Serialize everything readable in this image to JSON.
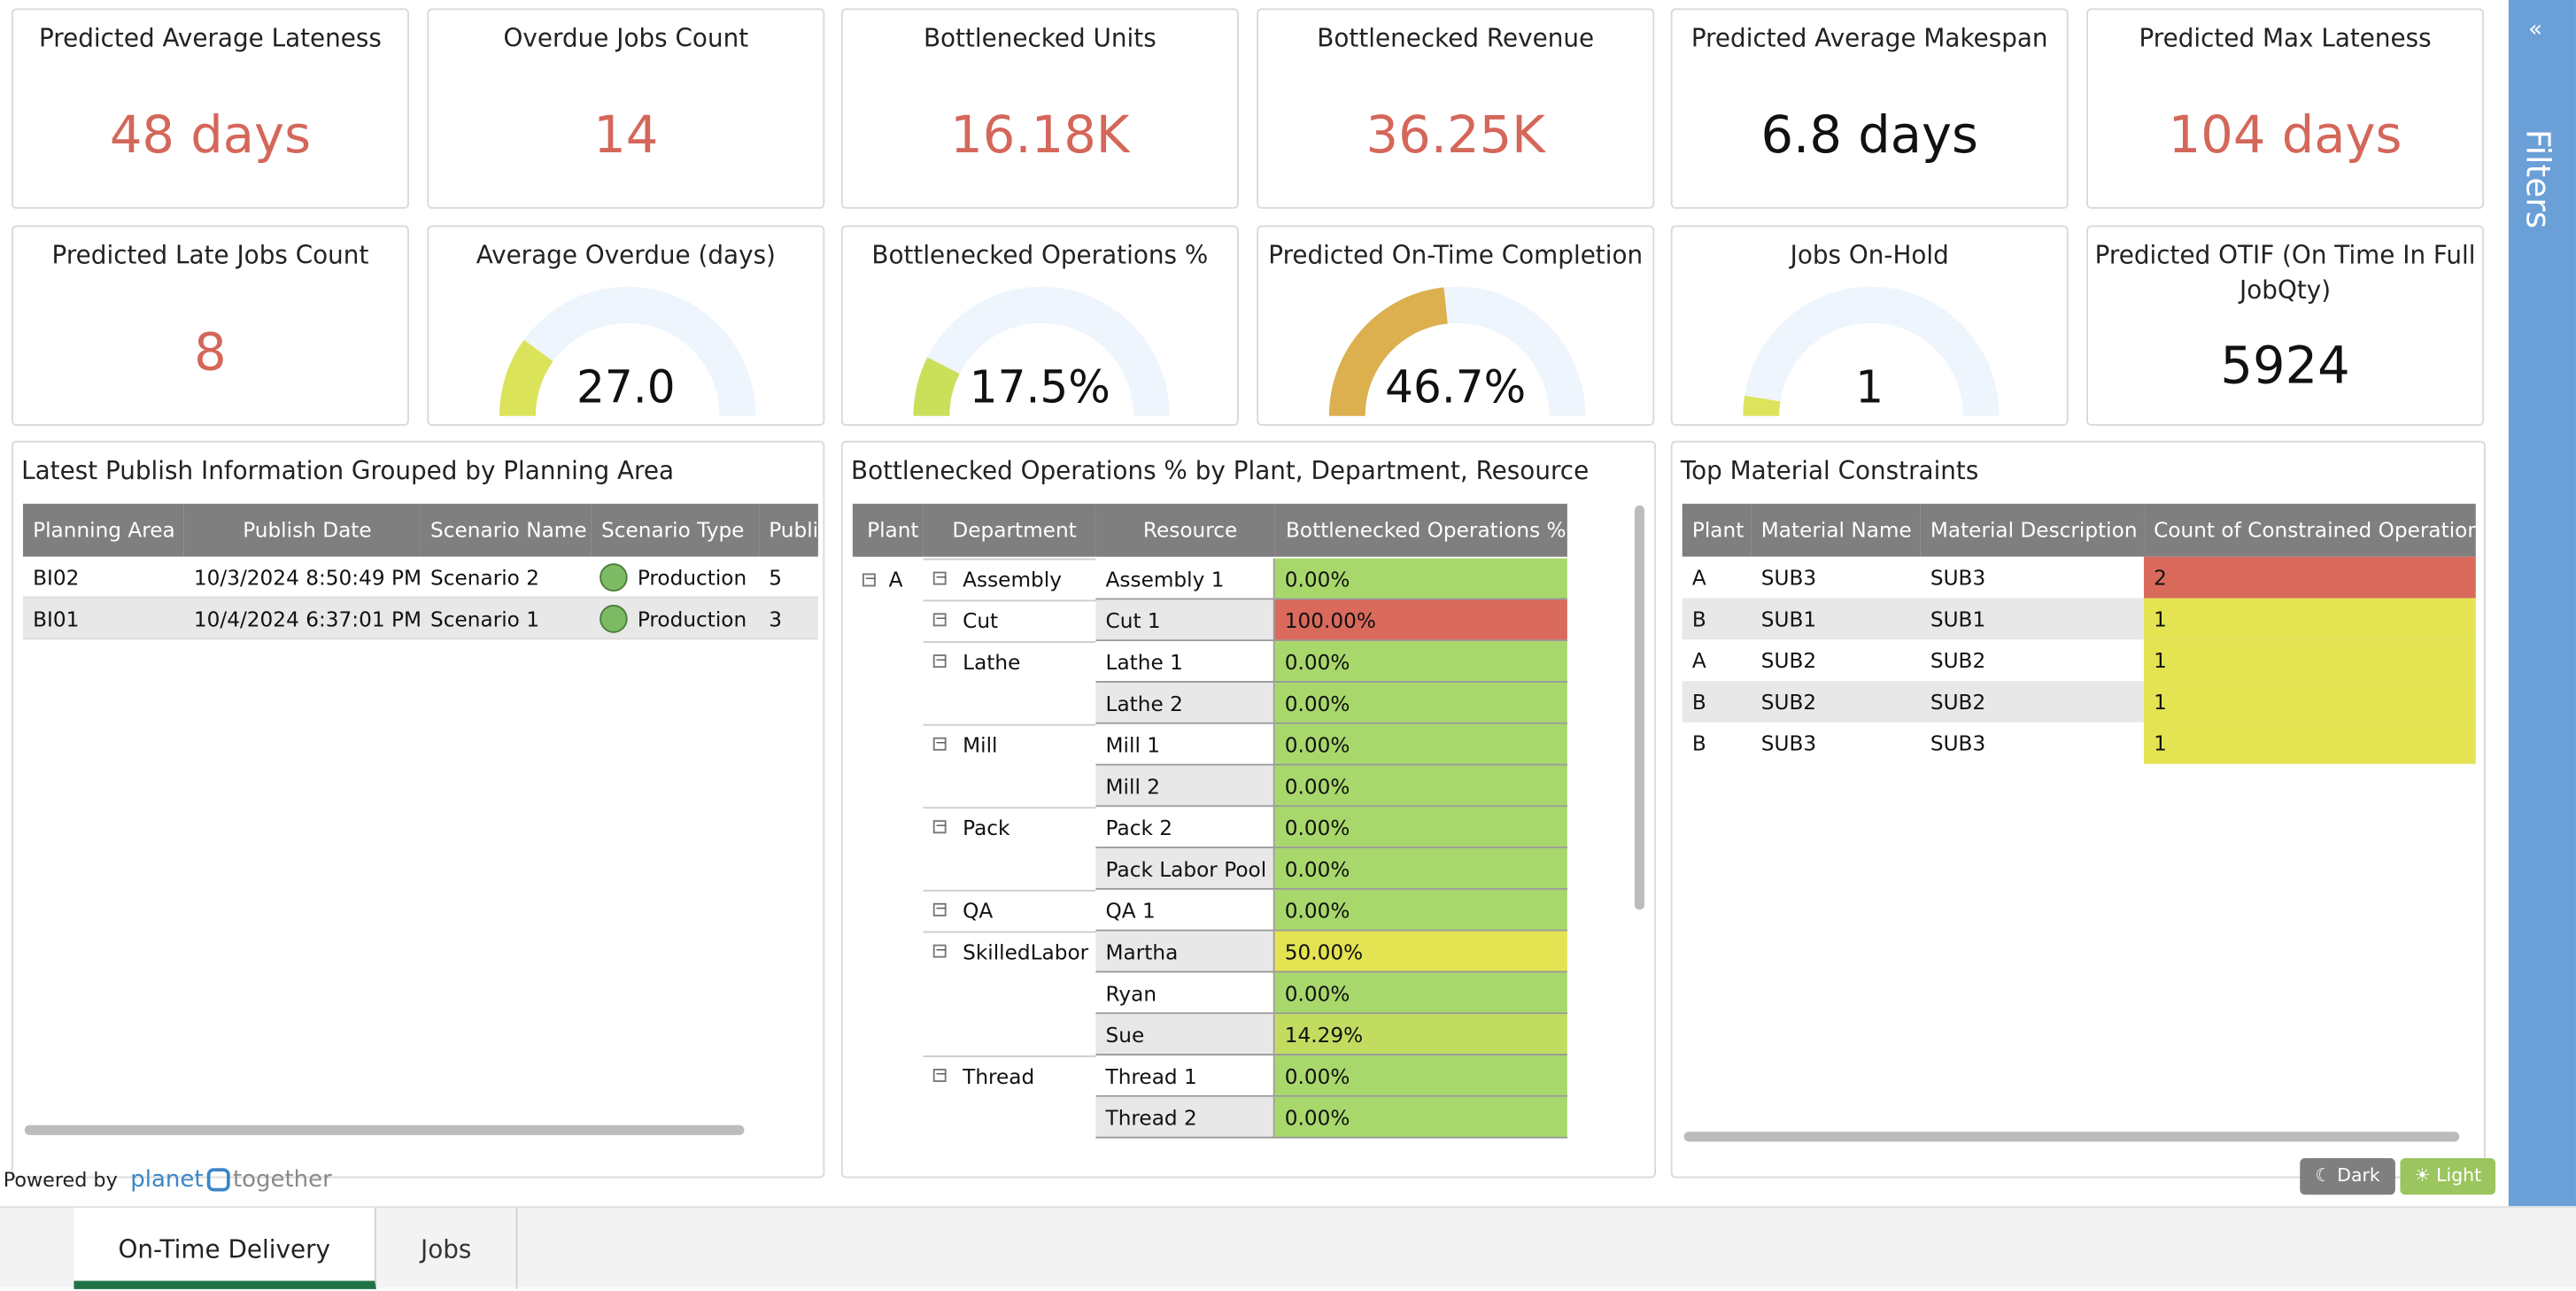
{
  "kpis": [
    {
      "title": "Predicted Average Lateness",
      "value": "48 days",
      "color": "#d4675a"
    },
    {
      "title": "Overdue Jobs Count",
      "value": "14",
      "color": "#d4675a"
    },
    {
      "title": "Bottlenecked Units",
      "value": "16.18K",
      "color": "#d4675a"
    },
    {
      "title": "Bottlenecked Revenue",
      "value": "36.25K",
      "color": "#d4675a"
    },
    {
      "title": "Predicted Average Makespan",
      "value": "6.8 days",
      "color": "#111111"
    },
    {
      "title": "Predicted Max Lateness",
      "value": "104 days",
      "color": "#d4675a"
    },
    {
      "title": "Predicted Late Jobs Count",
      "value": "8",
      "color": "#d4675a"
    },
    {
      "title": "Average Overdue (days)",
      "value": "27.0",
      "color": "#111111"
    },
    {
      "title": "Bottlenecked Operations %",
      "value": "17.5%",
      "color": "#111111"
    },
    {
      "title": "Predicted On-Time Completion",
      "value": "46.7%",
      "color": "#111111"
    },
    {
      "title": "Jobs On-Hold",
      "value": "1",
      "color": "#111111"
    },
    {
      "title": "Predicted OTIF (On Time In Full JobQty)",
      "value": "5924",
      "color": "#111111"
    }
  ],
  "publish": {
    "title": "Latest Publish Information Grouped by Planning Area",
    "headers": [
      "Planning Area",
      "Publish Date",
      "Scenario Name",
      "Scenario Type",
      "Publi"
    ],
    "rows": [
      [
        "BI02",
        "10/3/2024 8:50:49 PM",
        "Scenario 2",
        "Production",
        "5"
      ],
      [
        "BI01",
        "10/4/2024 6:37:01 PM",
        "Scenario 1",
        "Production",
        "3"
      ]
    ]
  },
  "bottleneck": {
    "title": "Bottlenecked Operations % by Plant, Department, Resource",
    "headers": [
      "Plant",
      "Department",
      "Resource",
      "Bottlenecked Operations %"
    ],
    "plants": [
      {
        "name": "A",
        "departments": [
          {
            "name": "Assembly",
            "resources": [
              {
                "name": "Assembly 1",
                "value": "0.00%",
                "color": "#a8d86c"
              }
            ]
          },
          {
            "name": "Cut",
            "resources": [
              {
                "name": "Cut 1",
                "value": "100.00%",
                "color": "#d96a5c"
              }
            ]
          },
          {
            "name": "Lathe",
            "resources": [
              {
                "name": "Lathe 1",
                "value": "0.00%",
                "color": "#a8d86c"
              },
              {
                "name": "Lathe 2",
                "value": "0.00%",
                "color": "#a8d86c"
              }
            ]
          },
          {
            "name": "Mill",
            "resources": [
              {
                "name": "Mill 1",
                "value": "0.00%",
                "color": "#a8d86c"
              },
              {
                "name": "Mill 2",
                "value": "0.00%",
                "color": "#a8d86c"
              }
            ]
          },
          {
            "name": "Pack",
            "resources": [
              {
                "name": "Pack 2",
                "value": "0.00%",
                "color": "#a8d86c"
              },
              {
                "name": "Pack Labor Pool",
                "value": "0.00%",
                "color": "#a8d86c"
              }
            ]
          },
          {
            "name": "QA",
            "resources": [
              {
                "name": "QA 1",
                "value": "0.00%",
                "color": "#a8d86c"
              }
            ]
          },
          {
            "name": "SkilledLabor",
            "resources": [
              {
                "name": "Martha",
                "value": "50.00%",
                "color": "#e4e352"
              },
              {
                "name": "Ryan",
                "value": "0.00%",
                "color": "#a8d86c"
              },
              {
                "name": "Sue",
                "value": "14.29%",
                "color": "#c2dc60"
              }
            ]
          },
          {
            "name": "Thread",
            "resources": [
              {
                "name": "Thread 1",
                "value": "0.00%",
                "color": "#a8d86c"
              },
              {
                "name": "Thread 2",
                "value": "0.00%",
                "color": "#a8d86c"
              }
            ]
          }
        ]
      }
    ]
  },
  "materials": {
    "title": "Top Material Constraints",
    "headers": [
      "Plant",
      "Material Name",
      "Material Description",
      "Count of Constrained Operation"
    ],
    "rows": [
      [
        "A",
        "SUB3",
        "SUB3",
        "2"
      ],
      [
        "B",
        "SUB1",
        "SUB1",
        "1"
      ],
      [
        "A",
        "SUB2",
        "SUB2",
        "1"
      ],
      [
        "B",
        "SUB2",
        "SUB2",
        "1"
      ],
      [
        "B",
        "SUB3",
        "SUB3",
        "1"
      ]
    ],
    "colors": [
      "#d96a5c",
      "#e4e352",
      "#e4e352",
      "#e4e352",
      "#e4e352"
    ]
  },
  "footer": {
    "powered_by": "Powered by",
    "brand_1": "planet",
    "brand_2": "together",
    "dark": "Dark",
    "light": "Light",
    "filters": "Filters"
  },
  "tabs": [
    "On-Time Delivery",
    "Jobs"
  ]
}
